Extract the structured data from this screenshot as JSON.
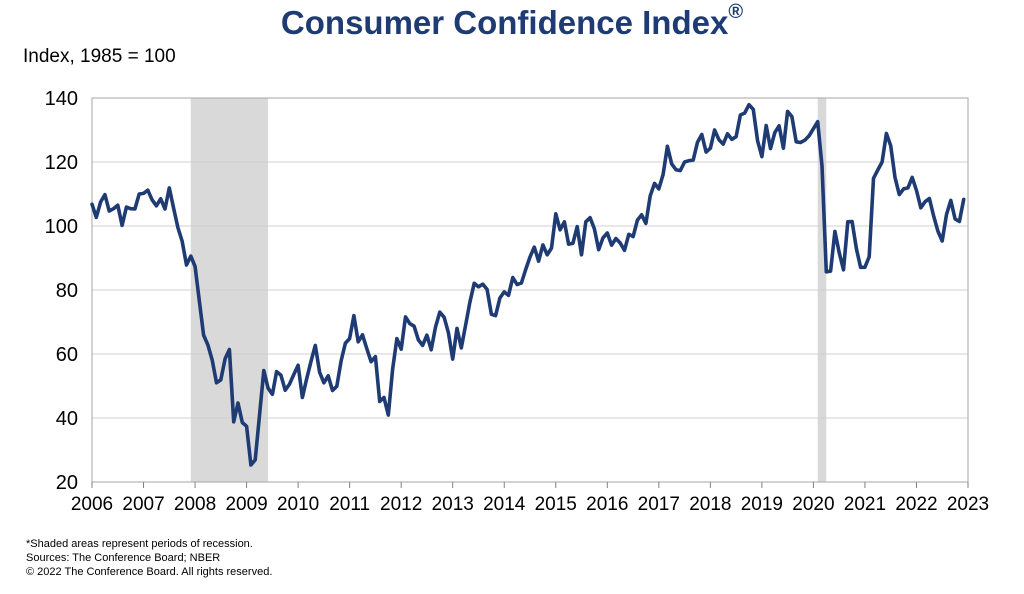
{
  "chart_data": {
    "type": "line",
    "title": "Consumer Confidence Index",
    "title_mark": "®",
    "ylabel": "Index, 1985 = 100",
    "xlabel": "",
    "ylim": [
      20,
      140
    ],
    "yticks": [
      20,
      40,
      60,
      80,
      100,
      120,
      140
    ],
    "xlim": [
      2006,
      2023
    ],
    "xticks": [
      "2006",
      "2007",
      "2008",
      "2009",
      "2010",
      "2011",
      "2012",
      "2013",
      "2014",
      "2015",
      "2016",
      "2017",
      "2018",
      "2019",
      "2020",
      "2021",
      "2022",
      "2023"
    ],
    "grid": "horizontal",
    "line_color": "#1f3b73",
    "recession_color": "#d9d9d9",
    "recessions": [
      {
        "start": "2007-12",
        "end": "2009-06"
      },
      {
        "start": "2020-02",
        "end": "2020-04"
      }
    ],
    "series": [
      {
        "x": [
          "2006-01",
          "2006-02",
          "2006-03",
          "2006-04",
          "2006-05",
          "2006-06",
          "2006-07",
          "2006-08",
          "2006-09",
          "2006-10",
          "2006-11",
          "2006-12",
          "2007-01",
          "2007-02",
          "2007-03",
          "2007-04",
          "2007-05",
          "2007-06",
          "2007-07",
          "2007-08",
          "2007-09",
          "2007-10",
          "2007-11",
          "2007-12",
          "2008-01",
          "2008-02",
          "2008-03",
          "2008-04",
          "2008-05",
          "2008-06",
          "2008-07",
          "2008-08",
          "2008-09",
          "2008-10",
          "2008-11",
          "2008-12",
          "2009-01",
          "2009-02",
          "2009-03",
          "2009-04",
          "2009-05",
          "2009-06",
          "2009-07",
          "2009-08",
          "2009-09",
          "2009-10",
          "2009-11",
          "2009-12",
          "2010-01",
          "2010-02",
          "2010-03",
          "2010-04",
          "2010-05",
          "2010-06",
          "2010-07",
          "2010-08",
          "2010-09",
          "2010-10",
          "2010-11",
          "2010-12",
          "2011-01",
          "2011-02",
          "2011-03",
          "2011-04",
          "2011-05",
          "2011-06",
          "2011-07",
          "2011-08",
          "2011-09",
          "2011-10",
          "2011-11",
          "2011-12",
          "2012-01",
          "2012-02",
          "2012-03",
          "2012-04",
          "2012-05",
          "2012-06",
          "2012-07",
          "2012-08",
          "2012-09",
          "2012-10",
          "2012-11",
          "2012-12",
          "2013-01",
          "2013-02",
          "2013-03",
          "2013-04",
          "2013-05",
          "2013-06",
          "2013-07",
          "2013-08",
          "2013-09",
          "2013-10",
          "2013-11",
          "2013-12",
          "2014-01",
          "2014-02",
          "2014-03",
          "2014-04",
          "2014-05",
          "2014-06",
          "2014-07",
          "2014-08",
          "2014-09",
          "2014-10",
          "2014-11",
          "2014-12",
          "2015-01",
          "2015-02",
          "2015-03",
          "2015-04",
          "2015-05",
          "2015-06",
          "2015-07",
          "2015-08",
          "2015-09",
          "2015-10",
          "2015-11",
          "2015-12",
          "2016-01",
          "2016-02",
          "2016-03",
          "2016-04",
          "2016-05",
          "2016-06",
          "2016-07",
          "2016-08",
          "2016-09",
          "2016-10",
          "2016-11",
          "2016-12",
          "2017-01",
          "2017-02",
          "2017-03",
          "2017-04",
          "2017-05",
          "2017-06",
          "2017-07",
          "2017-08",
          "2017-09",
          "2017-10",
          "2017-11",
          "2017-12",
          "2018-01",
          "2018-02",
          "2018-03",
          "2018-04",
          "2018-05",
          "2018-06",
          "2018-07",
          "2018-08",
          "2018-09",
          "2018-10",
          "2018-11",
          "2018-12",
          "2019-01",
          "2019-02",
          "2019-03",
          "2019-04",
          "2019-05",
          "2019-06",
          "2019-07",
          "2019-08",
          "2019-09",
          "2019-10",
          "2019-11",
          "2019-12",
          "2020-01",
          "2020-02",
          "2020-03",
          "2020-04",
          "2020-05",
          "2020-06",
          "2020-07",
          "2020-08",
          "2020-09",
          "2020-10",
          "2020-11",
          "2020-12",
          "2021-01",
          "2021-02",
          "2021-03",
          "2021-04",
          "2021-05",
          "2021-06",
          "2021-07",
          "2021-08",
          "2021-09",
          "2021-10",
          "2021-11",
          "2021-12",
          "2022-01",
          "2022-02",
          "2022-03",
          "2022-04",
          "2022-05",
          "2022-06",
          "2022-07",
          "2022-08",
          "2022-09",
          "2022-10",
          "2022-11",
          "2022-12"
        ],
        "values": [
          106.8,
          102.7,
          107.5,
          109.8,
          104.7,
          105.4,
          106.5,
          100.2,
          105.9,
          105.4,
          105.3,
          110.0,
          110.2,
          111.2,
          108.2,
          106.3,
          108.5,
          105.3,
          111.9,
          105.6,
          99.5,
          95.2,
          87.8,
          90.6,
          87.3,
          76.4,
          65.9,
          62.8,
          58.1,
          51.0,
          51.9,
          58.5,
          61.4,
          38.8,
          44.7,
          38.6,
          37.4,
          25.3,
          26.9,
          40.8,
          54.8,
          49.3,
          47.4,
          54.5,
          53.4,
          48.7,
          50.6,
          53.6,
          56.5,
          46.4,
          52.3,
          57.7,
          62.7,
          54.3,
          51.0,
          53.2,
          48.6,
          49.9,
          57.8,
          63.4,
          64.8,
          72.0,
          63.8,
          66.0,
          61.7,
          57.6,
          59.2,
          45.2,
          46.4,
          40.9,
          55.2,
          64.8,
          61.5,
          71.6,
          69.5,
          68.7,
          64.4,
          62.7,
          65.9,
          61.3,
          68.4,
          73.1,
          71.5,
          66.7,
          58.4,
          68.0,
          61.9,
          69.0,
          76.2,
          82.1,
          81.0,
          81.8,
          80.2,
          72.4,
          72.0,
          77.5,
          79.4,
          78.3,
          83.9,
          81.7,
          82.2,
          86.4,
          90.3,
          93.4,
          89.0,
          94.1,
          91.0,
          93.1,
          103.8,
          98.8,
          101.3,
          94.3,
          94.6,
          99.8,
          91.0,
          101.3,
          102.6,
          99.1,
          92.6,
          96.3,
          97.8,
          94.0,
          96.1,
          94.7,
          92.4,
          97.4,
          96.7,
          101.8,
          103.5,
          100.8,
          109.4,
          113.3,
          111.6,
          116.1,
          124.9,
          119.4,
          117.6,
          117.3,
          120.0,
          120.4,
          120.6,
          126.2,
          128.6,
          123.1,
          124.3,
          130.0,
          127.0,
          125.6,
          128.8,
          127.1,
          127.9,
          134.7,
          135.3,
          137.9,
          136.4,
          126.6,
          121.7,
          131.4,
          124.2,
          129.2,
          131.3,
          124.3,
          135.8,
          134.2,
          126.3,
          126.1,
          126.8,
          128.2,
          130.4,
          132.6,
          118.8,
          85.7,
          85.9,
          98.3,
          91.7,
          86.3,
          101.3,
          101.4,
          92.9,
          87.1,
          87.1,
          90.4,
          114.9,
          117.5,
          120.0,
          128.9,
          125.1,
          115.2,
          109.8,
          111.6,
          111.9,
          115.2,
          111.1,
          105.7,
          107.6,
          108.6,
          103.2,
          98.4,
          95.3,
          103.6,
          108.0,
          102.2,
          101.4,
          108.3
        ]
      }
    ]
  },
  "notes": {
    "line1": "*Shaded areas represent periods of recession.",
    "line2": "Sources: The Conference Board; NBER",
    "line3": "© 2022 The Conference Board. All rights reserved."
  }
}
